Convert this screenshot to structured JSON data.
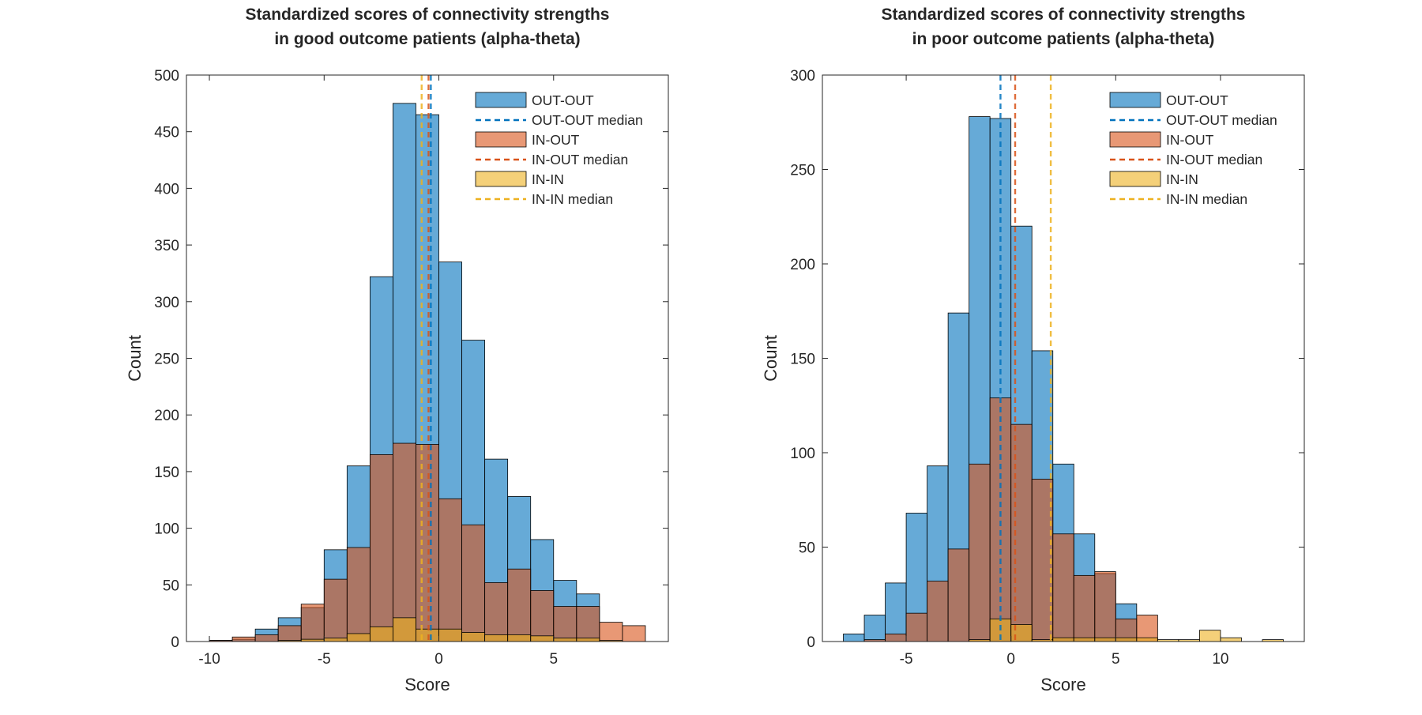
{
  "chart_data": [
    {
      "type": "histogram",
      "title": [
        "Standardized scores of connectivity strengths",
        "in good outcome patients (alpha-theta)"
      ],
      "xlabel": "Score",
      "ylabel": "Count",
      "xlim": [
        -11,
        10
      ],
      "ylim": [
        0,
        500
      ],
      "xticks": [
        -10,
        -5,
        0,
        5
      ],
      "yticks": [
        0,
        50,
        100,
        150,
        200,
        250,
        300,
        350,
        400,
        450,
        500
      ],
      "legend_position": "top-right",
      "series": [
        {
          "name": "OUT-OUT",
          "color": "#0072BD",
          "bin_edges": [
            -10,
            -9,
            -8,
            -7,
            -6,
            -5,
            -4,
            -3,
            -2,
            -1,
            0,
            1,
            2,
            3,
            4,
            5,
            6,
            7
          ],
          "counts": [
            1,
            2,
            11,
            21,
            30,
            81,
            155,
            322,
            475,
            465,
            335,
            266,
            161,
            128,
            90,
            54,
            42
          ]
        },
        {
          "name": "IN-OUT",
          "color": "#D95319",
          "bin_edges": [
            -10,
            -9,
            -8,
            -7,
            -6,
            -5,
            -4,
            -3,
            -2,
            -1,
            0,
            1,
            2,
            3,
            4,
            5,
            6,
            7,
            8,
            9
          ],
          "counts": [
            1,
            4,
            6,
            14,
            33,
            55,
            83,
            165,
            175,
            174,
            126,
            103,
            52,
            64,
            45,
            31,
            31,
            17,
            14
          ]
        },
        {
          "name": "IN-IN",
          "color": "#EDB120",
          "bin_edges": [
            -10,
            -9,
            -8,
            -7,
            -6,
            -5,
            -4,
            -3,
            -2,
            -1,
            0,
            1,
            2,
            3,
            4,
            5,
            6,
            7,
            8
          ],
          "counts": [
            0,
            0,
            0,
            1,
            2,
            3,
            7,
            13,
            21,
            11,
            11,
            8,
            6,
            6,
            5,
            3,
            3,
            1
          ]
        }
      ],
      "medians": [
        {
          "name": "OUT-OUT median",
          "color": "#0072BD",
          "x": -0.35
        },
        {
          "name": "IN-OUT median",
          "color": "#D95319",
          "x": -0.45
        },
        {
          "name": "IN-IN median",
          "color": "#EDB120",
          "x": -0.75
        }
      ]
    },
    {
      "type": "histogram",
      "title": [
        "Standardized scores of connectivity strengths",
        "in poor outcome patients (alpha-theta)"
      ],
      "xlabel": "Score",
      "ylabel": "Count",
      "xlim": [
        -9,
        14
      ],
      "ylim": [
        0,
        300
      ],
      "xticks": [
        -5,
        0,
        5,
        10
      ],
      "yticks": [
        0,
        50,
        100,
        150,
        200,
        250,
        300
      ],
      "legend_position": "top-right",
      "series": [
        {
          "name": "OUT-OUT",
          "color": "#0072BD",
          "bin_edges": [
            -8,
            -7,
            -6,
            -5,
            -4,
            -3,
            -2,
            -1,
            0,
            1,
            2,
            3,
            4,
            5,
            6
          ],
          "counts": [
            4,
            14,
            31,
            68,
            93,
            174,
            278,
            277,
            220,
            154,
            94,
            57,
            36,
            20
          ]
        },
        {
          "name": "IN-OUT",
          "color": "#D95319",
          "bin_edges": [
            -7,
            -6,
            -5,
            -4,
            -3,
            -2,
            -1,
            0,
            1,
            2,
            3,
            4,
            5,
            6,
            7
          ],
          "counts": [
            1,
            4,
            15,
            32,
            49,
            94,
            129,
            115,
            86,
            57,
            35,
            37,
            12,
            14
          ]
        },
        {
          "name": "IN-IN",
          "color": "#EDB120",
          "bin_edges": [
            -2,
            -1,
            0,
            1,
            2,
            3,
            4,
            5,
            6,
            7,
            8,
            9,
            10,
            11,
            12,
            13
          ],
          "counts": [
            1,
            12,
            9,
            1,
            2,
            2,
            2,
            2,
            2,
            1,
            1,
            6,
            2,
            0,
            1
          ]
        }
      ],
      "medians": [
        {
          "name": "OUT-OUT median",
          "color": "#0072BD",
          "x": -0.5
        },
        {
          "name": "IN-OUT median",
          "color": "#D95319",
          "x": 0.2
        },
        {
          "name": "IN-IN median",
          "color": "#EDB120",
          "x": 1.9
        }
      ]
    }
  ]
}
